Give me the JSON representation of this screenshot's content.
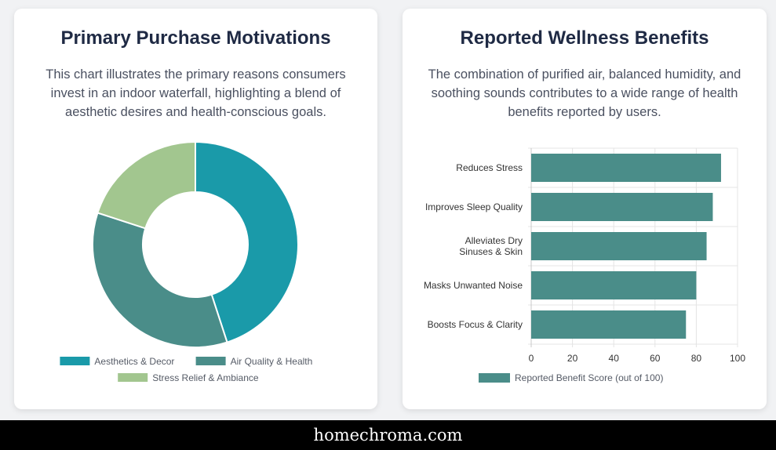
{
  "left_card": {
    "title": "Primary Purchase Motivations",
    "description": "This chart illustrates the primary reasons consumers invest in an indoor waterfall, highlighting a blend of aesthetic desires and health-conscious goals."
  },
  "right_card": {
    "title": "Reported Wellness Benefits",
    "description": "The combination of purified air, balanced humidity, and soothing sounds contributes to a wide range of health benefits reported by users."
  },
  "footer": {
    "text": "homechroma.com"
  },
  "colors": {
    "teal": "#1a9aa9",
    "green_teal": "#4a8d89",
    "sage": "#a2c68f",
    "bar": "#4a8d89"
  },
  "chart_data": [
    {
      "type": "pie",
      "style": "doughnut",
      "title": "Primary Purchase Motivations",
      "categories": [
        "Aesthetics & Decor",
        "Air Quality & Health",
        "Stress Relief & Ambiance"
      ],
      "values": [
        45,
        35,
        20
      ],
      "colors": [
        "#1a9aa9",
        "#4a8d89",
        "#a2c68f"
      ],
      "legend": "bottom"
    },
    {
      "type": "bar",
      "orientation": "horizontal",
      "title": "Reported Wellness Benefits",
      "categories": [
        "Reduces Stress",
        "Improves Sleep Quality",
        "Alleviates Dry Sinuses & Skin",
        "Masks Unwanted Noise",
        "Boosts Focus & Clarity"
      ],
      "category_lines": [
        [
          "Reduces Stress"
        ],
        [
          "Improves Sleep Quality"
        ],
        [
          "Alleviates Dry",
          "Sinuses & Skin"
        ],
        [
          "Masks Unwanted Noise"
        ],
        [
          "Boosts Focus & Clarity"
        ]
      ],
      "series": [
        {
          "name": "Reported Benefit Score (out of 100)",
          "values": [
            92,
            88,
            85,
            80,
            75
          ]
        }
      ],
      "xlim": [
        0,
        100
      ],
      "xticks": [
        "0",
        "20",
        "40",
        "60",
        "80",
        "100"
      ],
      "grid": true,
      "legend": "bottom"
    }
  ]
}
